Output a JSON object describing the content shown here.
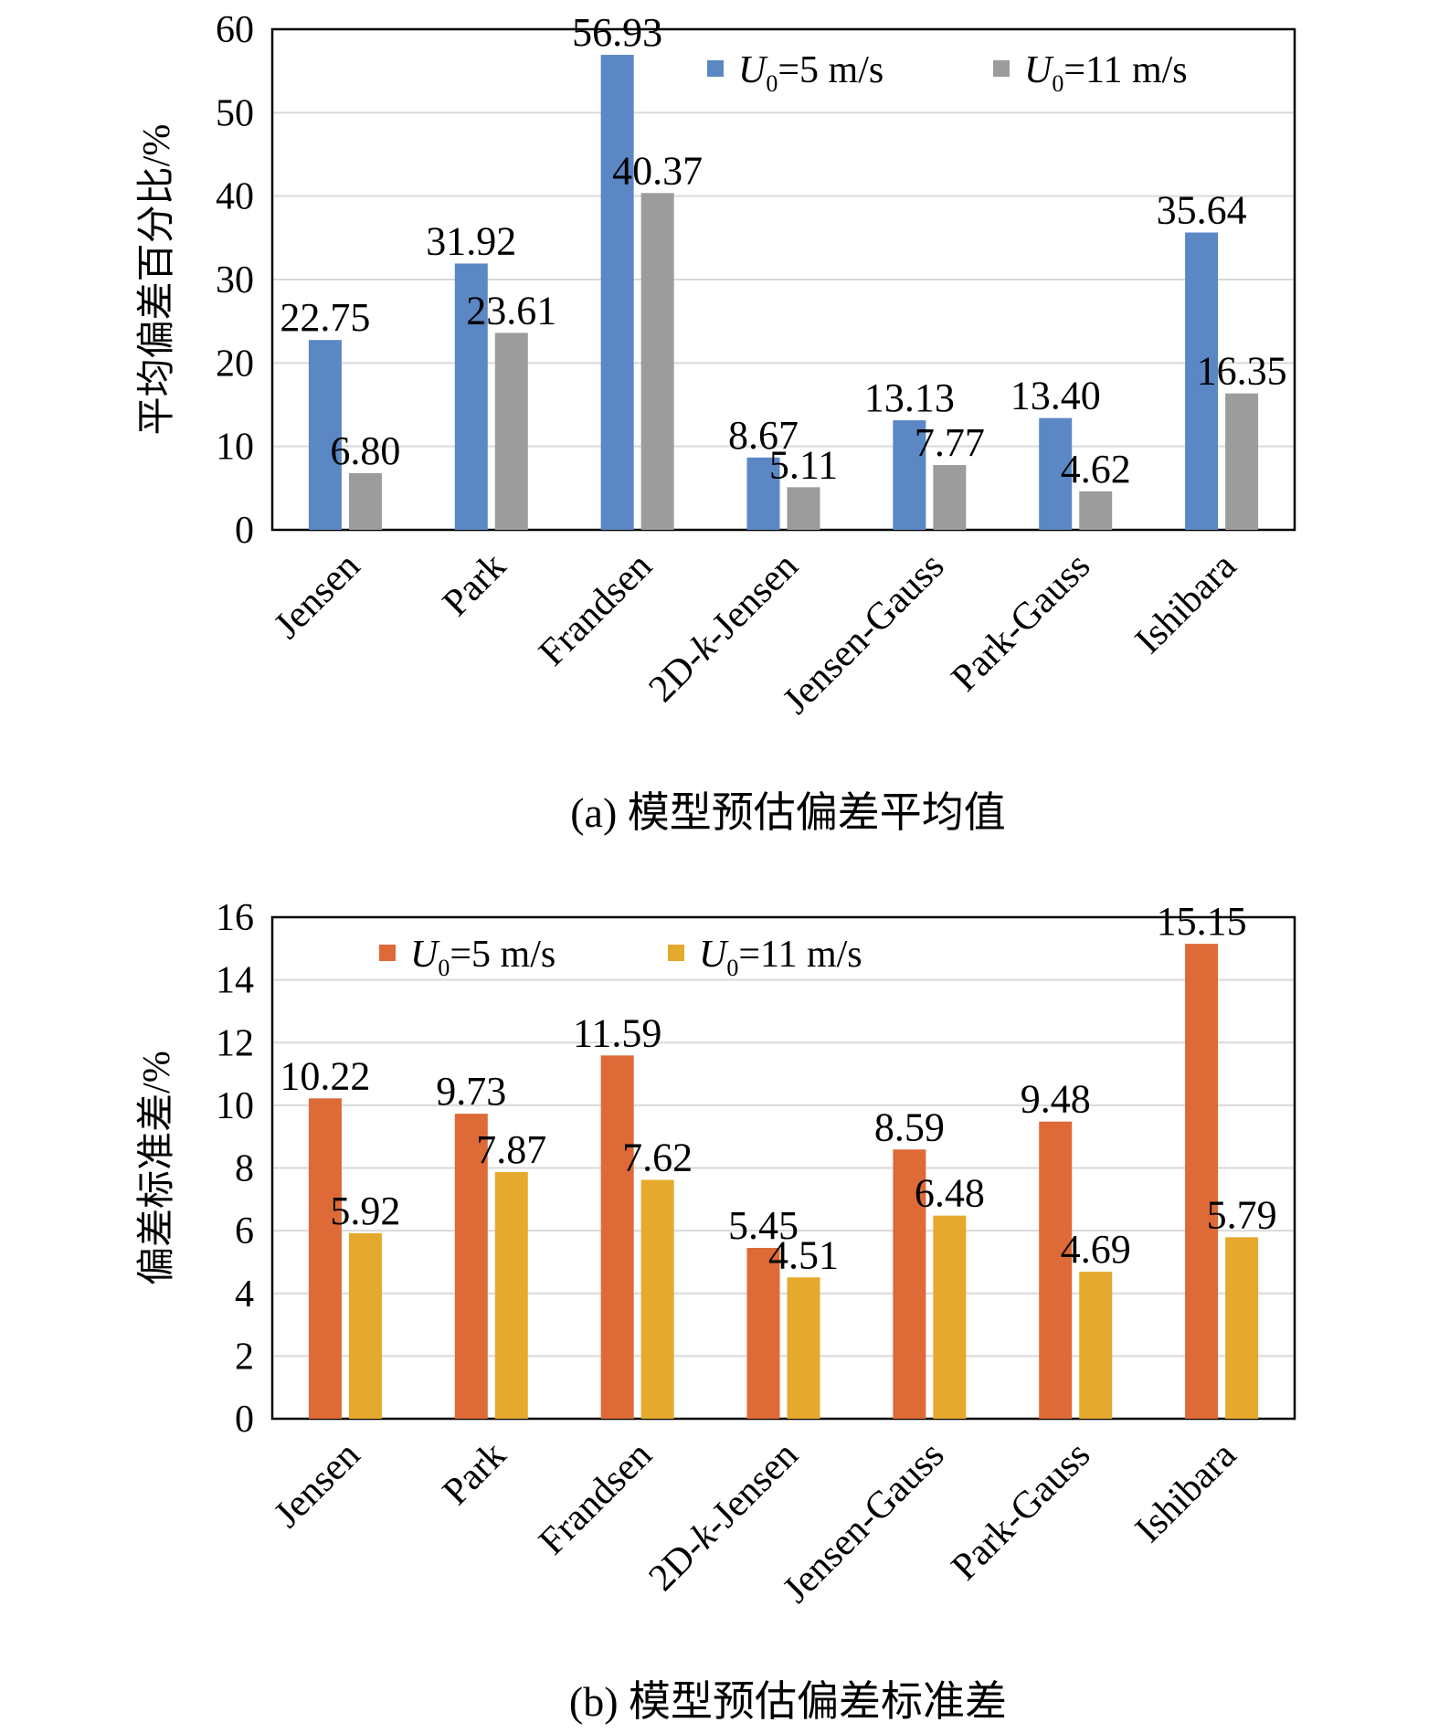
{
  "chart_data": [
    {
      "type": "bar",
      "caption": "(a) 模型预估偏差平均值",
      "ylabel": "平均偏差百分比/%",
      "ylim": [
        0,
        60
      ],
      "yticks": [
        0,
        10,
        20,
        30,
        40,
        50,
        60
      ],
      "grid": true,
      "legend_position": "top-right",
      "categories": [
        "Jensen",
        "Park",
        "Frandsen",
        "2D-k-Jensen",
        "Jensen-Gauss",
        "Park-Gauss",
        "Ishibara"
      ],
      "series": [
        {
          "name": "U0=5 m/s",
          "color": "#5b87c5",
          "values": [
            22.75,
            31.92,
            56.93,
            8.67,
            13.13,
            13.4,
            35.64
          ],
          "labels": [
            "22.75",
            "31.92",
            "56.93",
            "8.67",
            "13.13",
            "13.40",
            "35.64"
          ]
        },
        {
          "name": "U0=11 m/s",
          "color": "#9c9c9c",
          "values": [
            6.8,
            23.61,
            40.37,
            5.11,
            7.77,
            4.62,
            16.35
          ],
          "labels": [
            "6.80",
            "23.61",
            "40.37",
            "5.11",
            "7.77",
            "4.62",
            "16.35"
          ]
        }
      ]
    },
    {
      "type": "bar",
      "caption": "(b) 模型预估偏差标准差",
      "ylabel": "偏差标准差/%",
      "ylim": [
        0,
        16
      ],
      "yticks": [
        0,
        2,
        4,
        6,
        8,
        10,
        12,
        14,
        16
      ],
      "grid": true,
      "legend_position": "top-left",
      "categories": [
        "Jensen",
        "Park",
        "Frandsen",
        "2D-k-Jensen",
        "Jensen-Gauss",
        "Park-Gauss",
        "Ishibara"
      ],
      "series": [
        {
          "name": "U0=5 m/s",
          "color": "#dd6a37",
          "values": [
            10.22,
            9.73,
            11.59,
            5.45,
            8.59,
            9.48,
            15.15
          ],
          "labels": [
            "10.22",
            "9.73",
            "11.59",
            "5.45",
            "8.59",
            "9.48",
            "15.15"
          ]
        },
        {
          "name": "U0=11 m/s",
          "color": "#e5a92d",
          "values": [
            5.92,
            7.87,
            7.62,
            4.51,
            6.48,
            4.69,
            5.79
          ],
          "labels": [
            "5.92",
            "7.87",
            "7.62",
            "4.51",
            "6.48",
            "4.69",
            "5.79"
          ]
        }
      ]
    }
  ]
}
